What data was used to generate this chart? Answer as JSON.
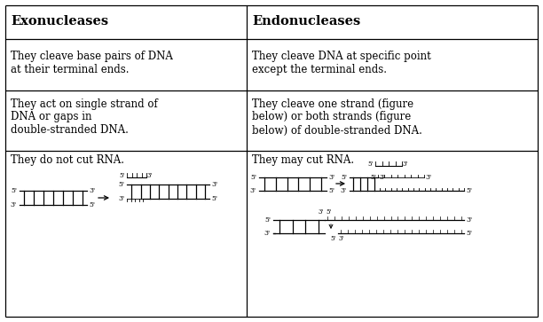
{
  "bg_color": "#ffffff",
  "text_color": "#000000",
  "line_color": "#000000",
  "col_split": 0.455,
  "title_left": "Exonucleases",
  "title_right": "Endonucleases",
  "row1_left": "They cleave base pairs of DNA\nat their terminal ends.",
  "row1_right": "They cleave DNA at specific point\nexcept the terminal ends.",
  "row2_left": "They act on single strand of\nDNA or gaps in\ndouble-stranded DNA.",
  "row2_right": "They cleave one strand (figure\nbelow) or both strands (figure\nbelow) of double-stranded DNA.",
  "row3_left": "They do not cut RNA.",
  "row3_right": "They may cut RNA.",
  "font_size": 8.5,
  "title_font_size": 10.5
}
